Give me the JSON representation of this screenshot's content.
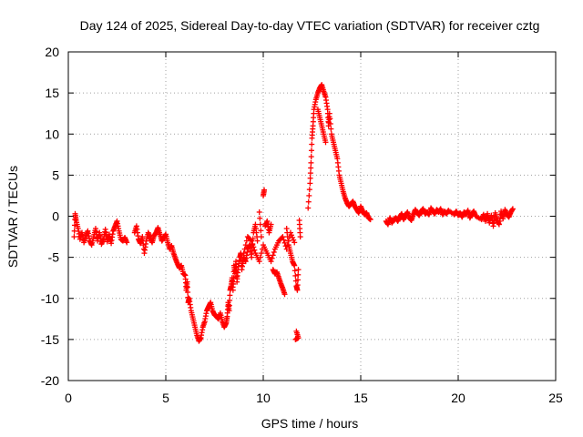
{
  "chart_data": {
    "type": "scatter",
    "title": "Day 124 of 2025, Sidereal Day-to-day VTEC variation (SDTVAR) for receiver cztg",
    "xlabel": "GPS time / hours",
    "ylabel": "SDTVAR / TECUs",
    "xlim": [
      0,
      25
    ],
    "ylim": [
      -20,
      20
    ],
    "xticks": [
      0,
      5,
      10,
      15,
      20,
      25
    ],
    "yticks": [
      -20,
      -15,
      -10,
      -5,
      0,
      5,
      10,
      15,
      20
    ],
    "grid": true,
    "marker": "+",
    "series_color": "#ff0000",
    "series": [
      {
        "name": "SDTVAR",
        "points": [
          [
            0.3,
            -2.5
          ],
          [
            0.35,
            0.3
          ],
          [
            0.4,
            -0.5
          ],
          [
            0.5,
            -1.5
          ],
          [
            0.6,
            -2.8
          ],
          [
            0.7,
            -2.0
          ],
          [
            0.8,
            -3.2
          ],
          [
            0.9,
            -2.4
          ],
          [
            1.0,
            -1.8
          ],
          [
            1.1,
            -3.0
          ],
          [
            1.2,
            -3.5
          ],
          [
            1.3,
            -2.5
          ],
          [
            1.4,
            -1.5
          ],
          [
            1.5,
            -3.0
          ],
          [
            1.6,
            -2.0
          ],
          [
            1.7,
            -3.4
          ],
          [
            1.8,
            -2.8
          ],
          [
            1.9,
            -1.6
          ],
          [
            2.0,
            -3.1
          ],
          [
            2.1,
            -2.2
          ],
          [
            2.2,
            -3.3
          ],
          [
            2.3,
            -1.8
          ],
          [
            2.4,
            -1.2
          ],
          [
            2.5,
            -0.6
          ],
          [
            2.6,
            -1.8
          ],
          [
            2.7,
            -2.8
          ],
          [
            2.8,
            -3.0
          ],
          [
            2.9,
            -2.6
          ],
          [
            3.0,
            -3.2
          ],
          [
            3.4,
            -2.0
          ],
          [
            3.5,
            -1.2
          ],
          [
            3.6,
            -2.8
          ],
          [
            3.7,
            -3.3
          ],
          [
            3.8,
            -2.5
          ],
          [
            3.9,
            -4.5
          ],
          [
            4.0,
            -3.0
          ],
          [
            4.1,
            -2.0
          ],
          [
            4.2,
            -2.6
          ],
          [
            4.3,
            -3.2
          ],
          [
            4.4,
            -2.4
          ],
          [
            4.5,
            -2.0
          ],
          [
            4.6,
            -1.4
          ],
          [
            4.7,
            -2.2
          ],
          [
            4.8,
            -3.0
          ],
          [
            4.9,
            -2.6
          ],
          [
            5.0,
            -2.2
          ],
          [
            5.1,
            -3.2
          ],
          [
            5.2,
            -4.0
          ],
          [
            5.3,
            -3.6
          ],
          [
            5.4,
            -4.5
          ],
          [
            5.5,
            -5.2
          ],
          [
            5.6,
            -5.8
          ],
          [
            5.7,
            -6.3
          ],
          [
            5.8,
            -6.0
          ],
          [
            5.9,
            -7.0
          ],
          [
            6.0,
            -7.2
          ],
          [
            6.05,
            -9.0
          ],
          [
            6.1,
            -8.0
          ],
          [
            6.15,
            -10.5
          ],
          [
            6.2,
            -10.0
          ],
          [
            6.3,
            -11.5
          ],
          [
            6.4,
            -12.5
          ],
          [
            6.5,
            -13.5
          ],
          [
            6.6,
            -14.5
          ],
          [
            6.7,
            -15.2
          ],
          [
            6.8,
            -14.8
          ],
          [
            6.9,
            -13.5
          ],
          [
            7.0,
            -12.8
          ],
          [
            7.1,
            -11.5
          ],
          [
            7.2,
            -11.0
          ],
          [
            7.3,
            -10.5
          ],
          [
            7.4,
            -11.5
          ],
          [
            7.5,
            -12.0
          ],
          [
            7.6,
            -12.2
          ],
          [
            7.7,
            -12.5
          ],
          [
            7.8,
            -11.8
          ],
          [
            7.9,
            -12.8
          ],
          [
            8.0,
            -13.5
          ],
          [
            8.1,
            -13.0
          ],
          [
            8.15,
            -12.2
          ],
          [
            8.2,
            -10.5
          ],
          [
            8.25,
            -11.5
          ],
          [
            8.3,
            -9.0
          ],
          [
            8.35,
            -8.5
          ],
          [
            8.4,
            -7.5
          ],
          [
            8.45,
            -9.0
          ],
          [
            8.5,
            -6.0
          ],
          [
            8.55,
            -7.0
          ],
          [
            8.6,
            -5.5
          ],
          [
            8.65,
            -8.0
          ],
          [
            8.7,
            -6.5
          ],
          [
            8.8,
            -5.0
          ],
          [
            8.85,
            -4.5
          ],
          [
            8.9,
            -6.5
          ],
          [
            9.0,
            -5.0
          ],
          [
            9.1,
            -5.5
          ],
          [
            9.2,
            -4.0
          ],
          [
            9.3,
            -3.5
          ],
          [
            9.4,
            -5.0
          ],
          [
            9.5,
            -2.0
          ],
          [
            9.6,
            -1.0
          ],
          [
            9.7,
            -3.0
          ],
          [
            9.8,
            0.5
          ],
          [
            9.9,
            -2.5
          ],
          [
            10.0,
            2.5
          ],
          [
            10.05,
            3.2
          ],
          [
            10.1,
            -1.2
          ],
          [
            10.2,
            -0.6
          ],
          [
            10.3,
            -2.0
          ],
          [
            10.4,
            -1.0
          ],
          [
            10.5,
            -6.5
          ],
          [
            10.6,
            -7.0
          ],
          [
            10.7,
            -6.8
          ],
          [
            10.8,
            -7.5
          ],
          [
            10.9,
            -8.2
          ],
          [
            11.0,
            -8.8
          ],
          [
            11.1,
            -9.5
          ],
          [
            11.2,
            -1.5
          ],
          [
            11.3,
            -3.5
          ],
          [
            11.4,
            -4.5
          ],
          [
            11.5,
            -5.5
          ],
          [
            11.6,
            -6.0
          ],
          [
            11.7,
            -8.5
          ],
          [
            11.75,
            -9.0
          ],
          [
            11.8,
            -6.5
          ],
          [
            11.85,
            -0.5
          ],
          [
            11.9,
            -2.5
          ],
          [
            11.7,
            -14.0
          ],
          [
            11.8,
            -14.8
          ],
          [
            11.65,
            -15.0
          ],
          [
            9.0,
            -4.5
          ],
          [
            9.2,
            -2.5
          ],
          [
            9.4,
            -3.0
          ],
          [
            9.6,
            -4.5
          ],
          [
            9.8,
            -5.5
          ],
          [
            10.0,
            -3.5
          ],
          [
            10.2,
            -4.5
          ],
          [
            10.4,
            -5.5
          ],
          [
            10.6,
            -4.0
          ],
          [
            10.8,
            -3.0
          ],
          [
            11.0,
            -2.5
          ],
          [
            11.2,
            -4.0
          ],
          [
            11.4,
            -2.0
          ],
          [
            11.6,
            -3.2
          ],
          [
            12.3,
            1.0
          ],
          [
            12.4,
            4.0
          ],
          [
            12.45,
            6.5
          ],
          [
            12.5,
            9.5
          ],
          [
            12.55,
            11.0
          ],
          [
            12.6,
            13.0
          ],
          [
            12.7,
            14.2
          ],
          [
            12.8,
            15.0
          ],
          [
            12.9,
            15.6
          ],
          [
            13.0,
            16.0
          ],
          [
            13.1,
            15.2
          ],
          [
            13.2,
            14.5
          ],
          [
            13.3,
            13.0
          ],
          [
            13.35,
            11.0
          ],
          [
            13.4,
            12.5
          ],
          [
            13.5,
            10.0
          ],
          [
            13.6,
            9.0
          ],
          [
            13.7,
            8.0
          ],
          [
            13.8,
            7.0
          ],
          [
            13.9,
            5.0
          ],
          [
            14.0,
            4.0
          ],
          [
            14.1,
            3.0
          ],
          [
            14.2,
            2.2
          ],
          [
            14.3,
            1.6
          ],
          [
            14.4,
            1.2
          ],
          [
            14.5,
            1.5
          ],
          [
            14.6,
            1.8
          ],
          [
            14.7,
            1.2
          ],
          [
            14.8,
            0.8
          ],
          [
            14.9,
            0.4
          ],
          [
            15.0,
            1.2
          ],
          [
            15.1,
            0.6
          ],
          [
            15.2,
            0.2
          ],
          [
            15.3,
            0.4
          ],
          [
            15.4,
            -0.2
          ],
          [
            15.5,
            -0.4
          ],
          [
            12.8,
            13.0
          ],
          [
            12.9,
            12.0
          ],
          [
            13.0,
            11.0
          ],
          [
            13.1,
            10.0
          ],
          [
            13.2,
            9.0
          ],
          [
            16.3,
            -0.6
          ],
          [
            16.4,
            -1.0
          ],
          [
            16.5,
            -0.2
          ],
          [
            16.6,
            -0.8
          ],
          [
            16.7,
            -0.4
          ],
          [
            16.8,
            -0.2
          ],
          [
            16.9,
            -0.6
          ],
          [
            17.0,
            -0.1
          ],
          [
            17.1,
            0.3
          ],
          [
            17.2,
            -0.4
          ],
          [
            17.3,
            0.1
          ],
          [
            17.4,
            0.5
          ],
          [
            17.5,
            -0.2
          ],
          [
            17.6,
            -0.5
          ],
          [
            17.7,
            0.2
          ],
          [
            17.8,
            0.8
          ],
          [
            17.9,
            0.4
          ],
          [
            18.0,
            0.1
          ],
          [
            18.1,
            0.6
          ],
          [
            18.2,
            0.9
          ],
          [
            18.3,
            0.3
          ],
          [
            18.4,
            0.5
          ],
          [
            18.5,
            0.2
          ],
          [
            18.6,
            1.0
          ],
          [
            18.7,
            0.6
          ],
          [
            18.8,
            0.3
          ],
          [
            18.9,
            0.8
          ],
          [
            19.0,
            0.5
          ],
          [
            19.1,
            0.9
          ],
          [
            19.2,
            0.2
          ],
          [
            19.3,
            0.6
          ],
          [
            19.4,
            0.3
          ],
          [
            19.5,
            0.7
          ],
          [
            19.8,
            0.2
          ],
          [
            19.9,
            0.6
          ],
          [
            20.0,
            0.1
          ],
          [
            20.1,
            0.4
          ],
          [
            20.2,
            -0.1
          ],
          [
            20.3,
            0.5
          ],
          [
            20.4,
            0.2
          ],
          [
            20.5,
            0.7
          ],
          [
            20.6,
            -0.2
          ],
          [
            20.7,
            0.3
          ],
          [
            20.8,
            0.6
          ],
          [
            20.9,
            0.0
          ],
          [
            21.2,
            -0.4
          ],
          [
            21.3,
            0.2
          ],
          [
            21.4,
            -0.6
          ],
          [
            21.5,
            0.3
          ],
          [
            21.6,
            -0.8
          ],
          [
            21.7,
            0.1
          ],
          [
            21.8,
            -1.2
          ],
          [
            21.9,
            0.4
          ],
          [
            22.0,
            -0.5
          ],
          [
            22.1,
            -1.0
          ],
          [
            22.2,
            0.6
          ],
          [
            22.3,
            -0.3
          ],
          [
            22.4,
            0.8
          ],
          [
            22.5,
            0.2
          ],
          [
            22.6,
            -0.1
          ],
          [
            22.7,
            0.5
          ],
          [
            22.8,
            0.9
          ]
        ]
      }
    ]
  }
}
